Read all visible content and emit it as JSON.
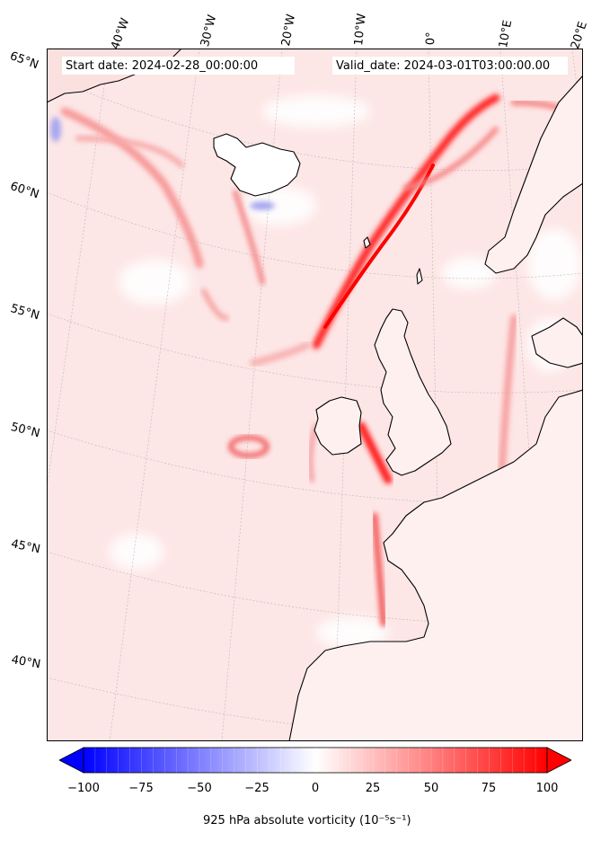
{
  "map": {
    "region": "North-east Atlantic and western Europe",
    "header": {
      "start_date": "Start date: 2024-02-28_00:00:00",
      "valid_date": "Valid_date: 2024-03-01T03:00:00.00"
    },
    "longitude_labels": [
      "40°W",
      "30°W",
      "20°W",
      "10°W",
      "0°",
      "10°E",
      "20°E"
    ],
    "latitude_labels": [
      "65°N",
      "60°N",
      "55°N",
      "50°N",
      "45°N",
      "40°N"
    ],
    "field": {
      "variable": "925 hPa absolute vorticity",
      "base_color": "#fde8e8",
      "max_color": "#ff0000",
      "min_color": "#0000ff",
      "coastline_color": "#000000"
    }
  },
  "colorbar": {
    "label": "925 hPa absolute vorticity (10⁻⁵s⁻¹)",
    "ticks": [
      "−100",
      "−75",
      "−50",
      "−25",
      "0",
      "25",
      "50",
      "75",
      "100"
    ],
    "range": [
      -100,
      100
    ],
    "colormap": "bwr",
    "extend": "both"
  }
}
